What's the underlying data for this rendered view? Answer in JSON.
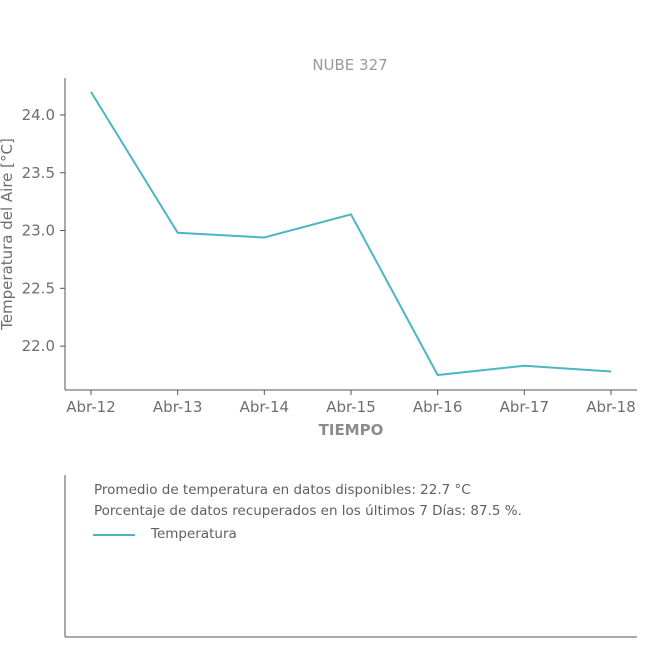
{
  "chart_data": {
    "type": "line",
    "title": "NUBE 327",
    "xlabel": "TIEMPO",
    "ylabel": "Temperatura del Aire [°C]",
    "categories": [
      "Abr-12",
      "Abr-13",
      "Abr-14",
      "Abr-15",
      "Abr-16",
      "Abr-17",
      "Abr-18"
    ],
    "y_ticks": [
      "22.0",
      "22.5",
      "23.0",
      "23.5",
      "24.0"
    ],
    "ylim": [
      21.62,
      24.32
    ],
    "series": [
      {
        "name": "Temperatura",
        "color": "#4db6c4",
        "values": [
          24.2,
          22.98,
          22.94,
          23.14,
          21.75,
          21.83,
          21.78
        ]
      }
    ],
    "grid": false,
    "legend_position": "bottom"
  },
  "info": {
    "average_text": "Promedio de temperatura en datos disponibles: 22.7 °C",
    "percentage_text": "Porcentaje de datos recuperados en los últimos 7 Días: 87.5 %.",
    "legend_label": "Temperatura"
  }
}
